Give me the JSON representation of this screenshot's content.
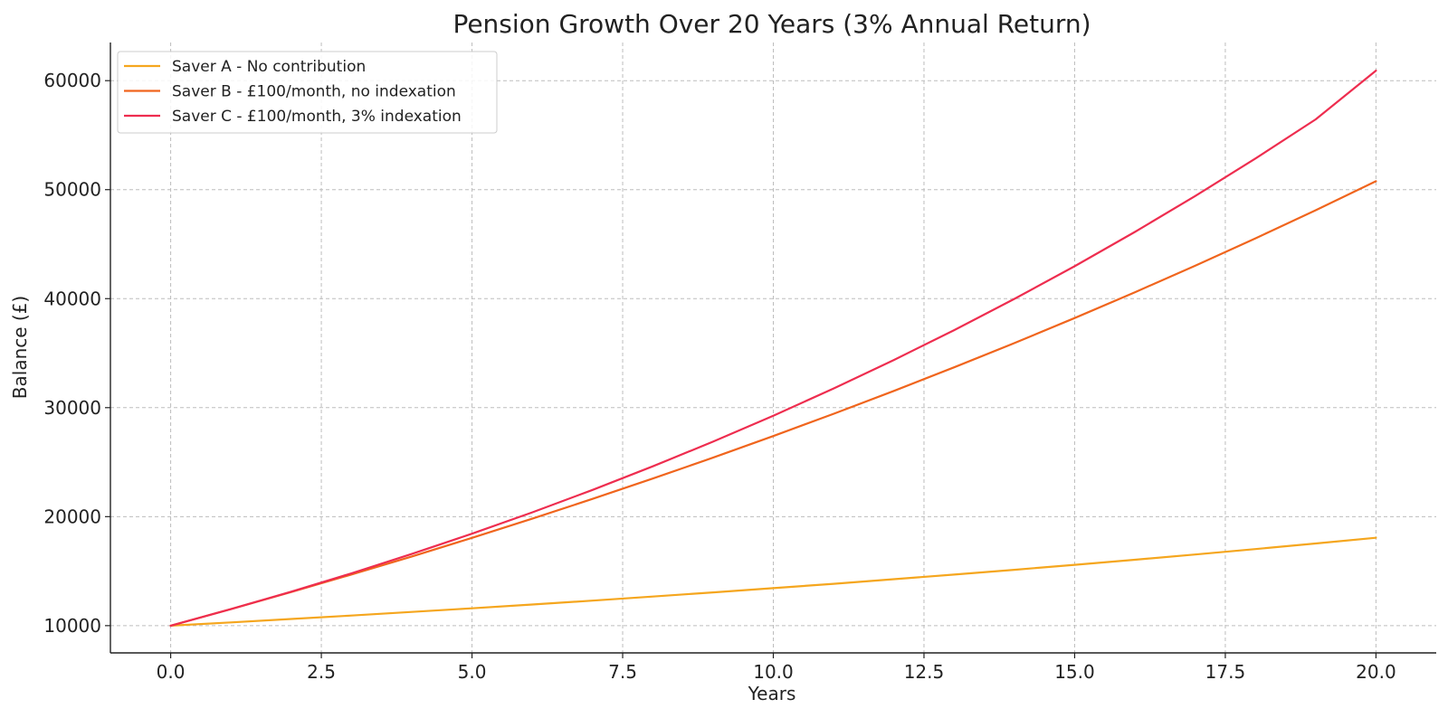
{
  "chart_data": {
    "type": "line",
    "title": "Pension Growth Over 20 Years (3% Annual Return)",
    "xlabel": "Years",
    "ylabel": "Balance (£)",
    "xlim": [
      -1,
      21
    ],
    "ylim": [
      7500,
      63500
    ],
    "xticks": [
      0.0,
      2.5,
      5.0,
      7.5,
      10.0,
      12.5,
      15.0,
      17.5,
      20.0
    ],
    "xtick_labels": [
      "0.0",
      "2.5",
      "5.0",
      "7.5",
      "10.0",
      "12.5",
      "15.0",
      "17.5",
      "20.0"
    ],
    "yticks": [
      10000,
      20000,
      30000,
      40000,
      50000,
      60000
    ],
    "ytick_labels": [
      "10000",
      "20000",
      "30000",
      "40000",
      "50000",
      "60000"
    ],
    "grid": true,
    "legend_position": "top-left",
    "x": [
      0,
      1,
      2,
      3,
      4,
      5,
      6,
      7,
      8,
      9,
      10,
      11,
      12,
      13,
      14,
      15,
      16,
      17,
      18,
      19,
      20
    ],
    "series": [
      {
        "name": "Saver A - No contribution",
        "color": "#f5a61e",
        "values": [
          10000,
          10300,
          10609,
          10927,
          11255,
          11593,
          11941,
          12299,
          12668,
          13048,
          13439,
          13842,
          14258,
          14685,
          15126,
          15580,
          16047,
          16528,
          17024,
          17535,
          18061
        ]
      },
      {
        "name": "Saver B - £100/month, no indexation",
        "color": "#f0651d",
        "values": [
          10000,
          11517,
          13080,
          14690,
          16348,
          18055,
          19814,
          21626,
          23492,
          25414,
          27394,
          29433,
          31533,
          33697,
          35925,
          38221,
          40585,
          43020,
          45529,
          48112,
          50774
        ]
      },
      {
        "name": "Saver C - £100/month, 3% indexation",
        "color": "#ee2d4f",
        "values": [
          10000,
          11517,
          13116,
          14800,
          16572,
          18436,
          20395,
          22453,
          24614,
          26882,
          29261,
          31755,
          34369,
          37108,
          39976,
          42979,
          46123,
          49412,
          52853,
          56452,
          60916
        ]
      }
    ]
  }
}
